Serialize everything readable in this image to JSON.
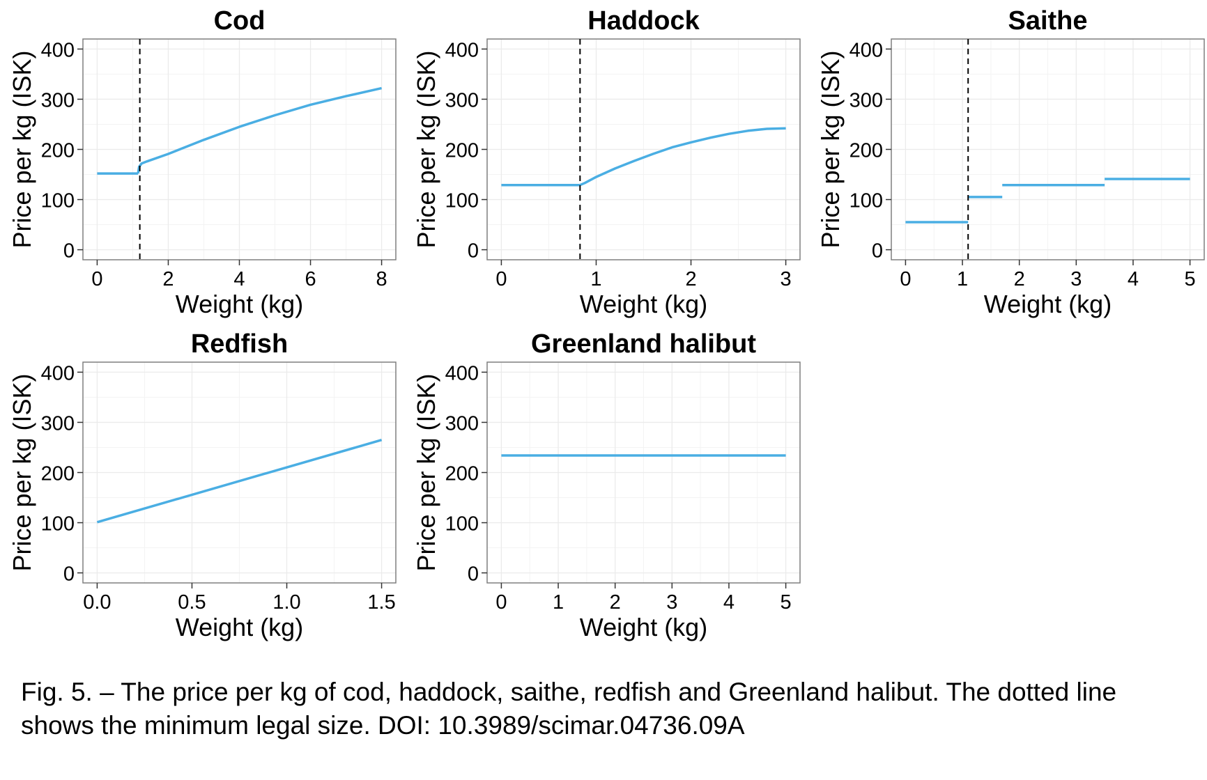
{
  "chart_data": [
    {
      "type": "line",
      "title": "Cod",
      "xlabel": "Weight (kg)",
      "ylabel": "Price per kg (ISK)",
      "xlim": [
        -0.4,
        8.4
      ],
      "ylim": [
        -20,
        420
      ],
      "xticks": [
        0,
        2,
        4,
        6,
        8
      ],
      "xtick_labels": [
        "0",
        "2",
        "4",
        "6",
        "8"
      ],
      "yticks": [
        0,
        100,
        200,
        300,
        400
      ],
      "ytick_labels": [
        "0",
        "100",
        "200",
        "300",
        "400"
      ],
      "min_legal_size": 1.2,
      "line_color": "#4aaee3",
      "segments": [
        {
          "x": [
            0,
            0.6,
            1.15
          ],
          "y": [
            152,
            152,
            152
          ]
        },
        {
          "x": [
            1.15,
            1.18,
            1.25,
            1.4,
            2,
            3,
            4,
            5,
            6,
            7,
            8
          ],
          "y": [
            152,
            165,
            172,
            176,
            191,
            219,
            245,
            268,
            289,
            306,
            322
          ]
        }
      ]
    },
    {
      "type": "line",
      "title": "Haddock",
      "xlabel": "Weight (kg)",
      "ylabel": "Price per kg (ISK)",
      "xlim": [
        -0.15,
        3.15
      ],
      "ylim": [
        -20,
        420
      ],
      "xticks": [
        0,
        1,
        2,
        3
      ],
      "xtick_labels": [
        "0",
        "1",
        "2",
        "3"
      ],
      "yticks": [
        0,
        100,
        200,
        300,
        400
      ],
      "ytick_labels": [
        "0",
        "100",
        "200",
        "300",
        "400"
      ],
      "min_legal_size": 0.83,
      "line_color": "#4aaee3",
      "segments": [
        {
          "x": [
            0,
            0.4,
            0.83,
            0.88,
            1,
            1.2,
            1.4,
            1.6,
            1.8,
            2,
            2.2,
            2.4,
            2.6,
            2.8,
            3
          ],
          "y": [
            129,
            129,
            129,
            133,
            145,
            162,
            177,
            191,
            204,
            214,
            223,
            231,
            237,
            241,
            242
          ]
        }
      ]
    },
    {
      "type": "line",
      "title": "Saithe",
      "xlabel": "Weight (kg)",
      "ylabel": "Price per kg (ISK)",
      "xlim": [
        -0.25,
        5.25
      ],
      "ylim": [
        -20,
        420
      ],
      "xticks": [
        0,
        1,
        2,
        3,
        4,
        5
      ],
      "xtick_labels": [
        "0",
        "1",
        "2",
        "3",
        "4",
        "5"
      ],
      "yticks": [
        0,
        100,
        200,
        300,
        400
      ],
      "ytick_labels": [
        "0",
        "100",
        "200",
        "300",
        "400"
      ],
      "min_legal_size": 1.1,
      "line_color": "#4aaee3",
      "segments": [
        {
          "x": [
            0,
            1.1
          ],
          "y": [
            55,
            55
          ]
        },
        {
          "x": [
            1.1,
            1.7
          ],
          "y": [
            105,
            105
          ]
        },
        {
          "x": [
            1.7,
            3.5
          ],
          "y": [
            129,
            129
          ]
        },
        {
          "x": [
            3.5,
            5
          ],
          "y": [
            141,
            141
          ]
        }
      ]
    },
    {
      "type": "line",
      "title": "Redfish",
      "xlabel": "Weight (kg)",
      "ylabel": "Price per kg (ISK)",
      "xlim": [
        -0.075,
        1.575
      ],
      "ylim": [
        -20,
        420
      ],
      "xticks": [
        0,
        0.5,
        1,
        1.5
      ],
      "xtick_labels": [
        "0.0",
        "0.5",
        "1.0",
        "1.5"
      ],
      "yticks": [
        0,
        100,
        200,
        300,
        400
      ],
      "ytick_labels": [
        "0",
        "100",
        "200",
        "300",
        "400"
      ],
      "min_legal_size": null,
      "line_color": "#4aaee3",
      "segments": [
        {
          "x": [
            0,
            1.5
          ],
          "y": [
            101,
            265
          ]
        }
      ]
    },
    {
      "type": "line",
      "title": "Greenland halibut",
      "xlabel": "Weight (kg)",
      "ylabel": "Price per kg (ISK)",
      "xlim": [
        -0.25,
        5.25
      ],
      "ylim": [
        -20,
        420
      ],
      "xticks": [
        0,
        1,
        2,
        3,
        4,
        5
      ],
      "xtick_labels": [
        "0",
        "1",
        "2",
        "3",
        "4",
        "5"
      ],
      "yticks": [
        0,
        100,
        200,
        300,
        400
      ],
      "ytick_labels": [
        "0",
        "100",
        "200",
        "300",
        "400"
      ],
      "min_legal_size": null,
      "line_color": "#4aaee3",
      "segments": [
        {
          "x": [
            0,
            5
          ],
          "y": [
            234,
            234
          ]
        }
      ]
    }
  ],
  "caption": {
    "line1": "Fig. 5. – The price per kg of cod, haddock, saithe, redfish and Greenland halibut. The dotted line",
    "line2": "shows the minimum legal size. DOI: 10.3989/scimar.04736.09A"
  }
}
